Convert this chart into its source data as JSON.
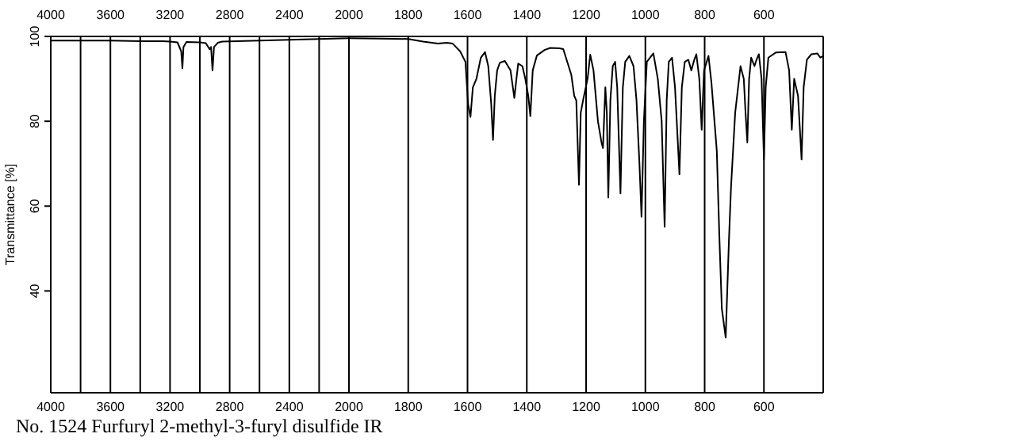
{
  "chart_data": [
    {
      "type": "line",
      "title": "No. 1524 Furfuryl 2-methyl-3-furyl disulfide IR",
      "ylabel": "Transmittance [%]",
      "xlim": [
        4000,
        2000
      ],
      "xticks": [
        4000,
        {
          "value": 3800,
          "label": null
        },
        3600,
        {
          "value": 3400,
          "label": null
        },
        3200,
        {
          "value": 3000,
          "label": null
        },
        2800,
        {
          "value": 2600,
          "label": null
        },
        2400,
        {
          "value": 2200,
          "label": null
        },
        2000
      ],
      "x2lim": [
        4000,
        2000
      ],
      "x2ticks": [
        4000,
        3600,
        3200,
        2800,
        2400,
        2000
      ],
      "ylim": [
        16,
        100
      ],
      "yticks": [
        100,
        80,
        60,
        40
      ],
      "grid": "x",
      "marker": "none",
      "series": [
        {
          "color": "#000000",
          "x": [
            4000,
            3800,
            3600,
            3400,
            3250,
            3200,
            3150,
            3125,
            3117,
            3110,
            3090,
            3000,
            2960,
            2935,
            2925,
            2915,
            2905,
            2880,
            2850,
            2600,
            2400,
            2200,
            2000
          ],
          "values": [
            99.0,
            99.0,
            99.0,
            98.9,
            98.9,
            98.8,
            98.6,
            96.5,
            92.5,
            97.5,
            98.7,
            98.6,
            98.4,
            97.0,
            97.5,
            92.0,
            97.5,
            98.5,
            98.8,
            99.0,
            99.2,
            99.4,
            99.6
          ]
        }
      ]
    },
    {
      "type": "line",
      "xlim": [
        2000,
        400
      ],
      "xticks": [
        1800,
        1600,
        1400,
        1200,
        1000,
        800,
        600
      ],
      "x2lim": [
        2000,
        400
      ],
      "x2ticks": [
        1800,
        1600,
        1400,
        1200,
        1000,
        800,
        600
      ],
      "ylim": [
        16,
        100
      ],
      "tick_labels": "x",
      "grid": "x",
      "marker": "none",
      "series": [
        {
          "color": "#000000",
          "x": [
            2000,
            1900,
            1800,
            1750,
            1700,
            1670,
            1650,
            1625,
            1607,
            1598,
            1590,
            1582,
            1570,
            1555,
            1541,
            1530,
            1520,
            1514,
            1508,
            1500,
            1491,
            1474,
            1455,
            1442,
            1435,
            1429,
            1415,
            1405,
            1395,
            1388,
            1380,
            1366,
            1340,
            1321,
            1290,
            1277,
            1268,
            1250,
            1240,
            1233,
            1224,
            1218,
            1210,
            1195,
            1186,
            1175,
            1160,
            1148,
            1143,
            1135,
            1130,
            1125,
            1118,
            1110,
            1102,
            1095,
            1084,
            1076,
            1068,
            1054,
            1040,
            1030,
            1020,
            1013,
            1005,
            995,
            973,
            958,
            945,
            935,
            928,
            921,
            910,
            900,
            885,
            877,
            867,
            855,
            845,
            835,
            828,
            818,
            810,
            802,
            787,
            777,
            759,
            750,
            742,
            729,
            718,
            711,
            697,
            679,
            668,
            662,
            656,
            650,
            643,
            632,
            625,
            617,
            608,
            600,
            594,
            585,
            560,
            527,
            515,
            506,
            498,
            485,
            473,
            466,
            455,
            440,
            420,
            410,
            400
          ],
          "values": [
            99.6,
            99.5,
            99.4,
            98.8,
            98.3,
            98.5,
            98.3,
            96.5,
            94.0,
            84.0,
            81.0,
            88.0,
            90.0,
            95.0,
            96.3,
            93.0,
            84.0,
            75.6,
            86.0,
            92.0,
            93.8,
            94.2,
            92.0,
            85.5,
            90.0,
            93.6,
            93.0,
            90.0,
            86.0,
            81.2,
            92.0,
            95.5,
            96.8,
            97.3,
            97.2,
            97.0,
            95.0,
            91.0,
            86.0,
            84.9,
            65.0,
            82.0,
            85.0,
            90.0,
            95.7,
            92.0,
            80.0,
            75.0,
            73.7,
            88.0,
            82.0,
            62.0,
            85.0,
            93.0,
            94.0,
            88.0,
            63.0,
            88.0,
            94.0,
            95.4,
            93.0,
            85.0,
            70.0,
            57.5,
            80.0,
            94.0,
            96.0,
            90.0,
            80.0,
            55.1,
            85.0,
            94.0,
            95.0,
            88.0,
            67.5,
            88.0,
            94.0,
            94.5,
            92.0,
            94.5,
            95.8,
            90.0,
            78.0,
            92.0,
            95.4,
            89.0,
            73.0,
            52.0,
            35.8,
            29.0,
            52.0,
            64.5,
            82.0,
            93.0,
            90.0,
            82.0,
            75.0,
            90.0,
            95.0,
            93.0,
            94.5,
            95.8,
            90.0,
            71.0,
            88.0,
            95.0,
            96.2,
            96.3,
            92.0,
            78.0,
            90.0,
            86.0,
            71.0,
            88.0,
            94.5,
            95.8,
            96.0,
            95.0,
            95.4
          ]
        }
      ]
    }
  ]
}
